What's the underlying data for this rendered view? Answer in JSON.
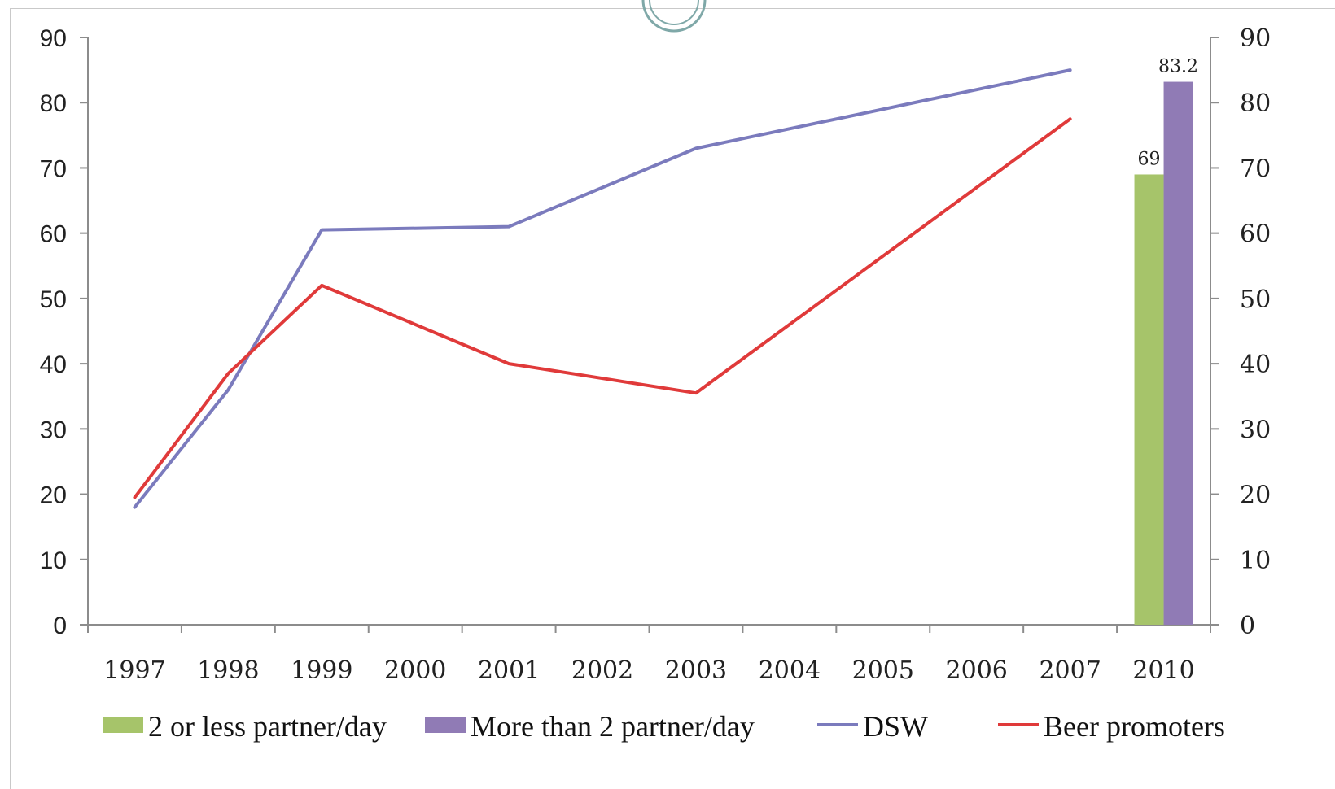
{
  "chart_data": {
    "type": "line",
    "categories": [
      "1997",
      "1998",
      "1999",
      "2000",
      "2001",
      "2002",
      "2003",
      "2004",
      "2005",
      "2006",
      "2007",
      "2010"
    ],
    "y_left": {
      "ticks": [
        "0",
        "10",
        "20",
        "30",
        "40",
        "50",
        "60",
        "70",
        "80",
        "90"
      ],
      "ylim": [
        0,
        90
      ]
    },
    "y_right": {
      "ticks": [
        "0",
        "10",
        "20",
        "30",
        "40",
        "50",
        "60",
        "70",
        "80",
        "90"
      ],
      "ylim": [
        0,
        90
      ]
    },
    "grid": false,
    "legend_position": "bottom",
    "series": [
      {
        "name": "DSW",
        "type": "line",
        "color": "#7b7bbd",
        "points": [
          {
            "x": "1997",
            "y": 18
          },
          {
            "x": "1998",
            "y": 36
          },
          {
            "x": "1999",
            "y": 60.5
          },
          {
            "x": "2001",
            "y": 61
          },
          {
            "x": "2003",
            "y": 73
          },
          {
            "x": "2007",
            "y": 85
          }
        ]
      },
      {
        "name": "Beer promoters",
        "type": "line",
        "color": "#e03a3a",
        "points": [
          {
            "x": "1997",
            "y": 19.5
          },
          {
            "x": "1998",
            "y": 38.5
          },
          {
            "x": "1999",
            "y": 52
          },
          {
            "x": "2001",
            "y": 40
          },
          {
            "x": "2003",
            "y": 35.5
          },
          {
            "x": "2007",
            "y": 77.5
          }
        ]
      },
      {
        "name": "2 or less partner/day",
        "type": "bar",
        "color": "#a6c46a",
        "points": [
          {
            "x": "2010",
            "y": 69,
            "label": "69"
          }
        ]
      },
      {
        "name": "More than 2 partner/day",
        "type": "bar",
        "color": "#907bb5",
        "points": [
          {
            "x": "2010",
            "y": 83.2,
            "label": "83.2"
          }
        ]
      }
    ],
    "legend": [
      {
        "label": "2 or less partner/day",
        "kind": "box",
        "color": "#a6c46a"
      },
      {
        "label": "More than 2 partner/day",
        "kind": "box",
        "color": "#907bb5"
      },
      {
        "label": "DSW",
        "kind": "line",
        "color": "#7b7bbd"
      },
      {
        "label": "Beer promoters",
        "kind": "line",
        "color": "#e03a3a"
      }
    ]
  }
}
